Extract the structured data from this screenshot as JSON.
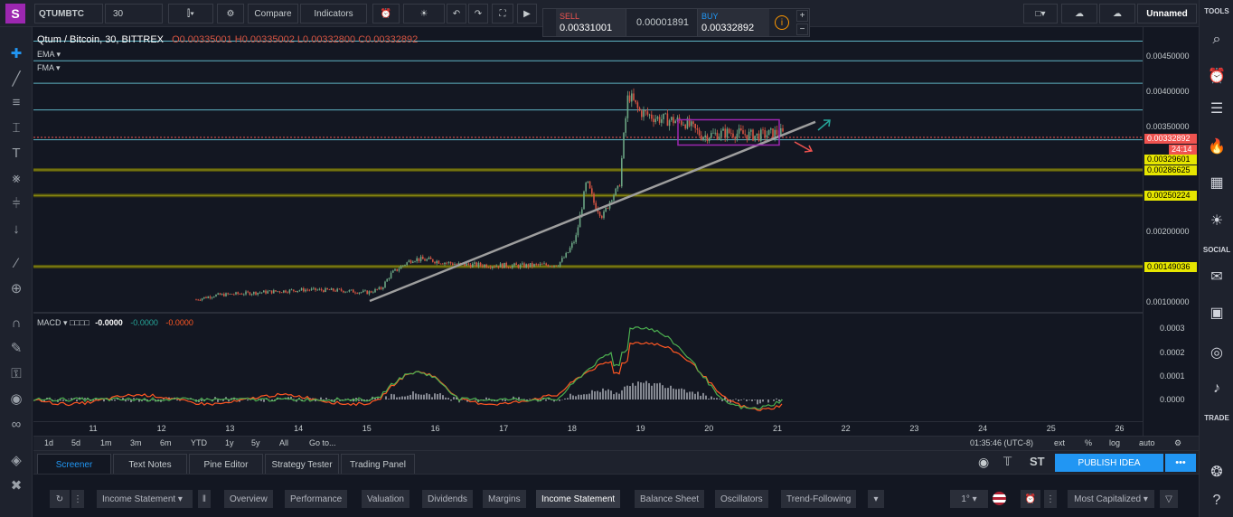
{
  "topbar": {
    "symbol": "QTUMBTC",
    "interval": "30",
    "compare_label": "Compare",
    "indicators_label": "Indicators",
    "layout_name": "Unnamed",
    "tools_label": "TOOLS"
  },
  "trade_widget": {
    "sell_label": "SELL",
    "sell_price": "0.00331001",
    "spread": "0.00001891",
    "buy_label": "BUY",
    "buy_price": "0.00332892"
  },
  "legend": {
    "title": "Qtum / Bitcoin, 30, BITTREX",
    "ohlc": "O0.00335001 H0.00335002 L0.00332800 C0.00332892",
    "ema_label": "EMA",
    "fma_label": "FMA"
  },
  "price_axis": {
    "labels": [
      "0.00450000",
      "0.00400000",
      "0.00350000",
      "0.00200000",
      "0.00100000"
    ],
    "current_price": "0.00332892",
    "countdown": "24:14",
    "level_1": "0.00329601",
    "level_2": "0.00286625",
    "level_3": "0.00250224",
    "level_4": "0.00149036"
  },
  "macd": {
    "label": "MACD",
    "v1": "-0.0000",
    "v2": "-0.0000",
    "v3": "-0.0000",
    "axis": [
      "0.0003",
      "0.0002",
      "0.0001",
      "0.0000"
    ]
  },
  "time_axis": [
    "11",
    "12",
    "13",
    "14",
    "15",
    "16",
    "17",
    "18",
    "19",
    "20",
    "21",
    "22",
    "23",
    "24",
    "25",
    "26"
  ],
  "range_bar": {
    "ranges": [
      "1d",
      "5d",
      "1m",
      "3m",
      "6m",
      "YTD",
      "1y",
      "5y",
      "All"
    ],
    "goto": "Go to...",
    "clock": "01:35:46 (UTC-8)",
    "ext": "ext",
    "pct": "%",
    "log": "log",
    "auto": "auto"
  },
  "bottom_tabs": [
    "Screener",
    "Text Notes",
    "Pine Editor",
    "Strategy Tester",
    "Trading Panel"
  ],
  "publish_label": "PUBLISH IDEA",
  "st_label": "ST",
  "screener": {
    "dropdown": "Income Statement",
    "tabs": [
      "Overview",
      "Performance",
      "Valuation",
      "Dividends",
      "Margins",
      "Income Statement",
      "Balance Sheet",
      "Oscillators",
      "Trend-Following"
    ],
    "interval": "1°",
    "filter": "Most Capitalized"
  },
  "right_labels": {
    "social": "SOCIAL",
    "trade": "TRADE"
  },
  "colors": {
    "up": "#6ba583",
    "down": "#d75442",
    "cyan": "#5fb4c4",
    "yellow": "#e6e600",
    "accent": "#1e88e5"
  }
}
